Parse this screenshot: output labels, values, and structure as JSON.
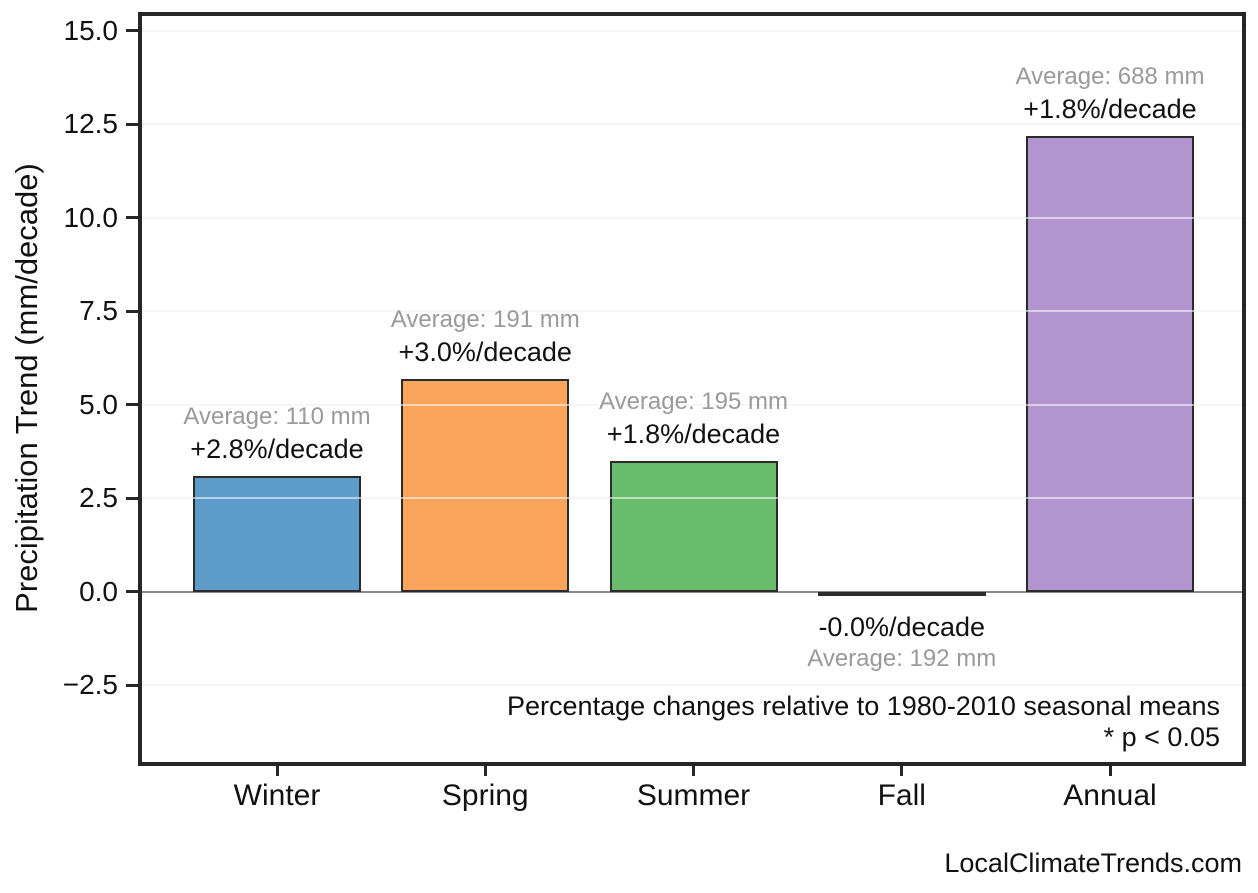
{
  "page": {
    "background": "#ffffff",
    "watermark": "LocalClimateTrends.com"
  },
  "chart_data": {
    "type": "bar",
    "title": "",
    "xlabel": "",
    "ylabel": "Precipitation Trend (mm/decade)",
    "categories": [
      "Winter",
      "Spring",
      "Summer",
      "Fall",
      "Annual"
    ],
    "values": [
      3.1,
      5.7,
      3.5,
      -0.05,
      12.2
    ],
    "bar_colors": [
      "#5d9cc9",
      "#fba55c",
      "#68bc6c",
      "#3f3f3f",
      "#b295cf"
    ],
    "bar_edge_color": "#2b2b2b",
    "annotations": [
      {
        "category": "Winter",
        "average": "Average: 110 mm",
        "trend": "+2.8%/decade",
        "position": "above"
      },
      {
        "category": "Spring",
        "average": "Average: 191 mm",
        "trend": "+3.0%/decade",
        "position": "above"
      },
      {
        "category": "Summer",
        "average": "Average: 195 mm",
        "trend": "+1.8%/decade",
        "position": "above"
      },
      {
        "category": "Fall",
        "average": "Average: 192 mm",
        "trend": "-0.0%/decade",
        "position": "below"
      },
      {
        "category": "Annual",
        "average": "Average: 688 mm",
        "trend": "+1.8%/decade",
        "position": "above"
      }
    ],
    "yticks": [
      15.0,
      12.5,
      10.0,
      7.5,
      5.0,
      2.5,
      0.0,
      -2.5
    ],
    "ytick_labels": [
      "15.0",
      "12.5",
      "10.0",
      "7.5",
      "5.0",
      "2.5",
      "0.0",
      "−2.5"
    ],
    "ylim": [
      -4.55,
      15.4
    ],
    "grid": "horizontal",
    "zero_line_color": "#8a8a8a",
    "annotation_colors": {
      "average": "#9a9a9a",
      "trend": "#111111"
    },
    "notes": [
      "Percentage changes relative to 1980-2010 seasonal means",
      "* p < 0.05"
    ]
  }
}
